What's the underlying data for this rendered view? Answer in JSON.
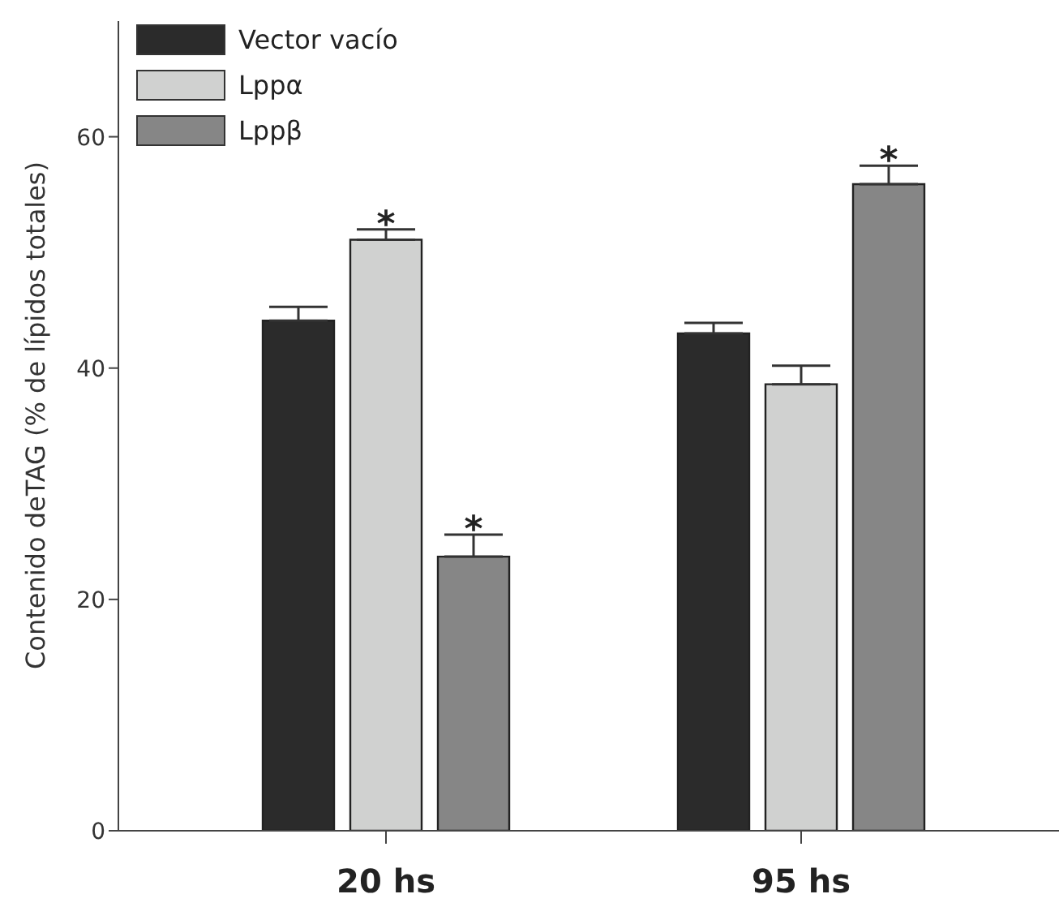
{
  "chart_data": {
    "type": "bar",
    "ylabel": "Contenido deTAG (% de lípidos totales)",
    "categories": [
      "20 hs",
      "95 hs"
    ],
    "series": [
      {
        "name": "Vector vacío",
        "color": "#2b2b2b",
        "values": [
          44.1,
          43.0
        ],
        "errors": [
          [
            44.1,
            45.3
          ],
          [
            43.0,
            43.9
          ]
        ]
      },
      {
        "name": "Lppα",
        "color": "#d0d1d0",
        "values": [
          51.1,
          38.6
        ],
        "errors": [
          [
            51.1,
            52.0
          ],
          [
            38.6,
            40.2
          ]
        ],
        "value_labels": [
          "*",
          null
        ]
      },
      {
        "name": "Lppβ",
        "color": "#868686",
        "values": [
          23.7,
          55.9
        ],
        "errors": [
          [
            23.7,
            25.6
          ],
          [
            55.9,
            57.5
          ]
        ],
        "value_labels": [
          "*",
          "*"
        ]
      }
    ],
    "ylim": [
      0,
      70
    ],
    "yticks": [
      0,
      20,
      40,
      60
    ],
    "grid": false,
    "legend": "top left"
  }
}
